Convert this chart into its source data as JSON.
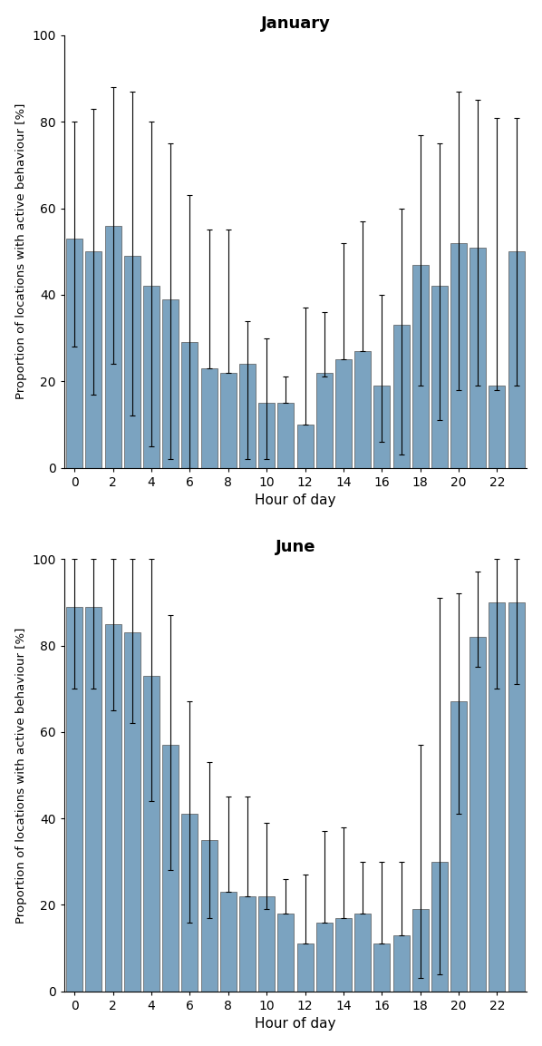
{
  "january": {
    "title": "January",
    "hours": [
      0,
      1,
      2,
      3,
      4,
      5,
      6,
      7,
      8,
      9,
      10,
      11,
      12,
      13,
      14,
      15,
      16,
      17,
      18,
      19,
      20,
      21,
      22,
      23
    ],
    "bar_heights": [
      53,
      50,
      56,
      49,
      42,
      39,
      29,
      23,
      22,
      24,
      15,
      15,
      10,
      22,
      25,
      27,
      19,
      33,
      47,
      42,
      52,
      51,
      19,
      50
    ],
    "lower_bounds": [
      28,
      17,
      24,
      12,
      5,
      2,
      0,
      23,
      22,
      2,
      2,
      15,
      10,
      21,
      25,
      27,
      6,
      3,
      19,
      11,
      18,
      19,
      18,
      19
    ],
    "upper_bounds": [
      80,
      83,
      88,
      87,
      80,
      75,
      63,
      55,
      55,
      34,
      30,
      21,
      37,
      36,
      52,
      57,
      40,
      60,
      77,
      75,
      87,
      85,
      81,
      81
    ]
  },
  "june": {
    "title": "June",
    "hours": [
      0,
      1,
      2,
      3,
      4,
      5,
      6,
      7,
      8,
      9,
      10,
      11,
      12,
      13,
      14,
      15,
      16,
      17,
      18,
      19,
      20,
      21,
      22,
      23
    ],
    "bar_heights": [
      89,
      89,
      85,
      83,
      73,
      57,
      41,
      35,
      23,
      22,
      22,
      18,
      11,
      16,
      17,
      18,
      11,
      13,
      19,
      30,
      67,
      82,
      90,
      90
    ],
    "lower_bounds": [
      70,
      70,
      65,
      62,
      44,
      28,
      16,
      17,
      23,
      22,
      19,
      18,
      11,
      16,
      17,
      18,
      11,
      13,
      3,
      4,
      41,
      75,
      70,
      71
    ],
    "upper_bounds": [
      100,
      100,
      100,
      100,
      100,
      87,
      67,
      53,
      45,
      45,
      39,
      26,
      27,
      37,
      38,
      30,
      30,
      30,
      57,
      91,
      92,
      97,
      100,
      100
    ]
  },
  "bar_color": "#7ba3c0",
  "bar_edgecolor": "#555555",
  "ylabel": "Proportion of locations with active behaviour [%]",
  "xlabel": "Hour of day",
  "ylim": [
    0,
    100
  ],
  "bar_width": 0.85
}
